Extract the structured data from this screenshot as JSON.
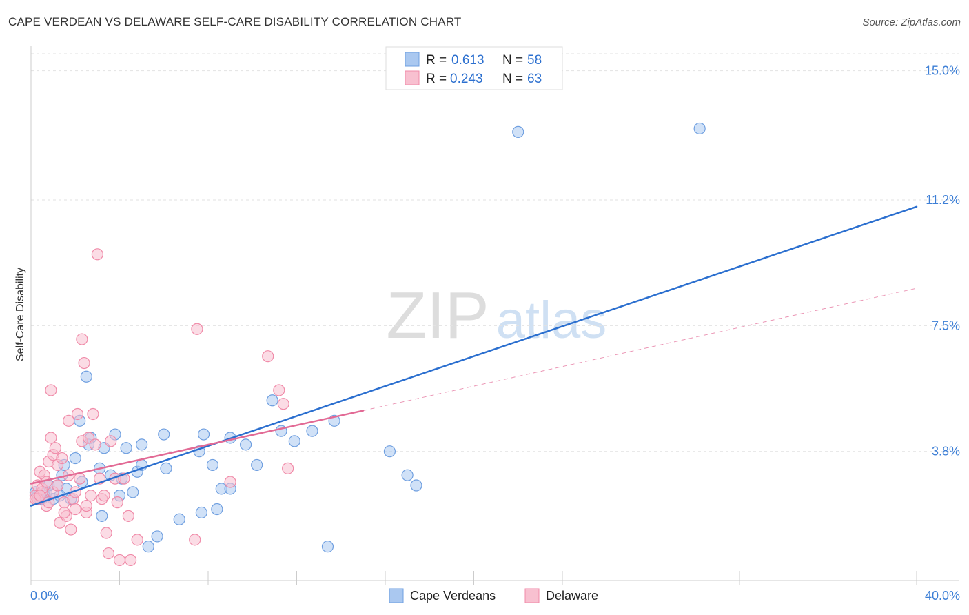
{
  "chart_data": {
    "type": "scatter",
    "title": "CAPE VERDEAN VS DELAWARE SELF-CARE DISABILITY CORRELATION CHART",
    "source": "Source: ZipAtlas.com",
    "ylabel": "Self-Care Disability",
    "xlabel": "",
    "xlim": [
      0,
      40
    ],
    "ylim": [
      0,
      15.5
    ],
    "x_tick_labels": [
      "0.0%",
      "40.0%"
    ],
    "y_ticks": [
      3.8,
      7.5,
      11.2,
      15.0
    ],
    "y_tick_labels": [
      "3.8%",
      "7.5%",
      "11.2%",
      "15.0%"
    ],
    "watermark": {
      "zip": "ZIP",
      "atlas": "atlas"
    },
    "legend_box": {
      "r_label": "R =",
      "n_label": "N =",
      "entries": [
        {
          "r": "0.613",
          "n": "58"
        },
        {
          "r": "0.243",
          "n": "63"
        }
      ]
    },
    "series": [
      {
        "name": "Cape Verdeans",
        "color": "#6f9fe0",
        "fill": "#aac8f0",
        "line_color": "#2b6fcf",
        "trend": {
          "x0": 0,
          "y0": 2.2,
          "x1": 40,
          "y1": 11.0,
          "style": "solid"
        },
        "points": [
          [
            0.3,
            2.5
          ],
          [
            0.5,
            2.4
          ],
          [
            0.7,
            2.6
          ],
          [
            0.8,
            2.8
          ],
          [
            1.0,
            2.4
          ],
          [
            1.2,
            2.8
          ],
          [
            1.4,
            3.1
          ],
          [
            1.5,
            3.4
          ],
          [
            1.6,
            2.7
          ],
          [
            1.8,
            2.4
          ],
          [
            2.0,
            3.6
          ],
          [
            2.2,
            4.7
          ],
          [
            2.3,
            2.9
          ],
          [
            2.5,
            6.0
          ],
          [
            2.6,
            4.0
          ],
          [
            2.7,
            4.2
          ],
          [
            3.1,
            3.3
          ],
          [
            3.3,
            3.9
          ],
          [
            3.2,
            1.9
          ],
          [
            3.6,
            3.1
          ],
          [
            3.8,
            4.3
          ],
          [
            4.0,
            2.5
          ],
          [
            4.1,
            3.0
          ],
          [
            4.3,
            3.9
          ],
          [
            4.6,
            2.6
          ],
          [
            4.8,
            3.2
          ],
          [
            5.0,
            3.4
          ],
          [
            5.0,
            4.0
          ],
          [
            5.3,
            1.0
          ],
          [
            5.7,
            1.3
          ],
          [
            6.0,
            4.3
          ],
          [
            6.1,
            3.3
          ],
          [
            6.7,
            1.8
          ],
          [
            7.6,
            3.8
          ],
          [
            7.7,
            2.0
          ],
          [
            7.8,
            4.3
          ],
          [
            8.2,
            3.4
          ],
          [
            8.4,
            2.1
          ],
          [
            8.6,
            2.7
          ],
          [
            9.0,
            2.7
          ],
          [
            9.0,
            4.2
          ],
          [
            9.7,
            4.0
          ],
          [
            10.2,
            3.4
          ],
          [
            10.9,
            5.3
          ],
          [
            11.3,
            4.4
          ],
          [
            11.9,
            4.1
          ],
          [
            12.7,
            4.4
          ],
          [
            13.4,
            1.0
          ],
          [
            13.7,
            4.7
          ],
          [
            16.2,
            3.8
          ],
          [
            17.0,
            3.1
          ],
          [
            17.4,
            2.8
          ],
          [
            22.0,
            13.2
          ],
          [
            30.2,
            13.3
          ],
          [
            0.2,
            2.6
          ],
          [
            0.4,
            2.4
          ],
          [
            0.6,
            2.5
          ],
          [
            1.3,
            2.5
          ]
        ]
      },
      {
        "name": "Delaware",
        "color": "#f08aa8",
        "fill": "#f8c0d0",
        "line_color": "#e26a95",
        "trend": {
          "x0": 0,
          "y0": 2.85,
          "x1": 15,
          "y1": 5.0,
          "style": "solid"
        },
        "trend_ext": {
          "x0": 15,
          "y0": 5.0,
          "x1": 40,
          "y1": 8.6,
          "style": "dashed"
        },
        "points": [
          [
            0.2,
            2.5
          ],
          [
            0.3,
            2.8
          ],
          [
            0.4,
            3.2
          ],
          [
            0.5,
            2.6
          ],
          [
            0.6,
            3.1
          ],
          [
            0.7,
            2.2
          ],
          [
            0.8,
            3.5
          ],
          [
            0.9,
            5.6
          ],
          [
            0.9,
            4.2
          ],
          [
            1.0,
            3.7
          ],
          [
            1.1,
            3.9
          ],
          [
            1.2,
            3.4
          ],
          [
            1.3,
            1.7
          ],
          [
            1.4,
            3.6
          ],
          [
            1.5,
            2.3
          ],
          [
            1.6,
            1.9
          ],
          [
            1.7,
            3.1
          ],
          [
            1.7,
            4.7
          ],
          [
            1.8,
            1.5
          ],
          [
            1.9,
            2.4
          ],
          [
            2.0,
            2.1
          ],
          [
            2.1,
            4.9
          ],
          [
            2.2,
            3.0
          ],
          [
            2.3,
            4.1
          ],
          [
            2.3,
            7.1
          ],
          [
            2.4,
            6.4
          ],
          [
            2.5,
            2.0
          ],
          [
            2.6,
            4.2
          ],
          [
            2.7,
            2.5
          ],
          [
            2.8,
            4.9
          ],
          [
            2.9,
            4.0
          ],
          [
            3.0,
            9.6
          ],
          [
            3.1,
            3.0
          ],
          [
            3.2,
            2.4
          ],
          [
            3.3,
            2.5
          ],
          [
            3.4,
            1.4
          ],
          [
            3.5,
            0.8
          ],
          [
            3.6,
            4.1
          ],
          [
            3.8,
            3.0
          ],
          [
            3.9,
            2.3
          ],
          [
            4.0,
            0.6
          ],
          [
            4.2,
            3.0
          ],
          [
            4.4,
            1.9
          ],
          [
            4.5,
            0.6
          ],
          [
            4.8,
            1.2
          ],
          [
            7.4,
            1.2
          ],
          [
            7.5,
            7.4
          ],
          [
            9.0,
            2.9
          ],
          [
            10.7,
            6.6
          ],
          [
            11.2,
            5.6
          ],
          [
            11.4,
            5.2
          ],
          [
            11.6,
            3.3
          ],
          [
            0.3,
            2.4
          ],
          [
            0.5,
            2.7
          ],
          [
            0.7,
            2.9
          ],
          [
            1.0,
            2.6
          ],
          [
            1.2,
            2.8
          ],
          [
            1.5,
            2.0
          ],
          [
            2.0,
            2.6
          ],
          [
            2.5,
            2.2
          ],
          [
            0.2,
            2.4
          ],
          [
            0.4,
            2.5
          ],
          [
            0.8,
            2.3
          ]
        ]
      }
    ]
  }
}
